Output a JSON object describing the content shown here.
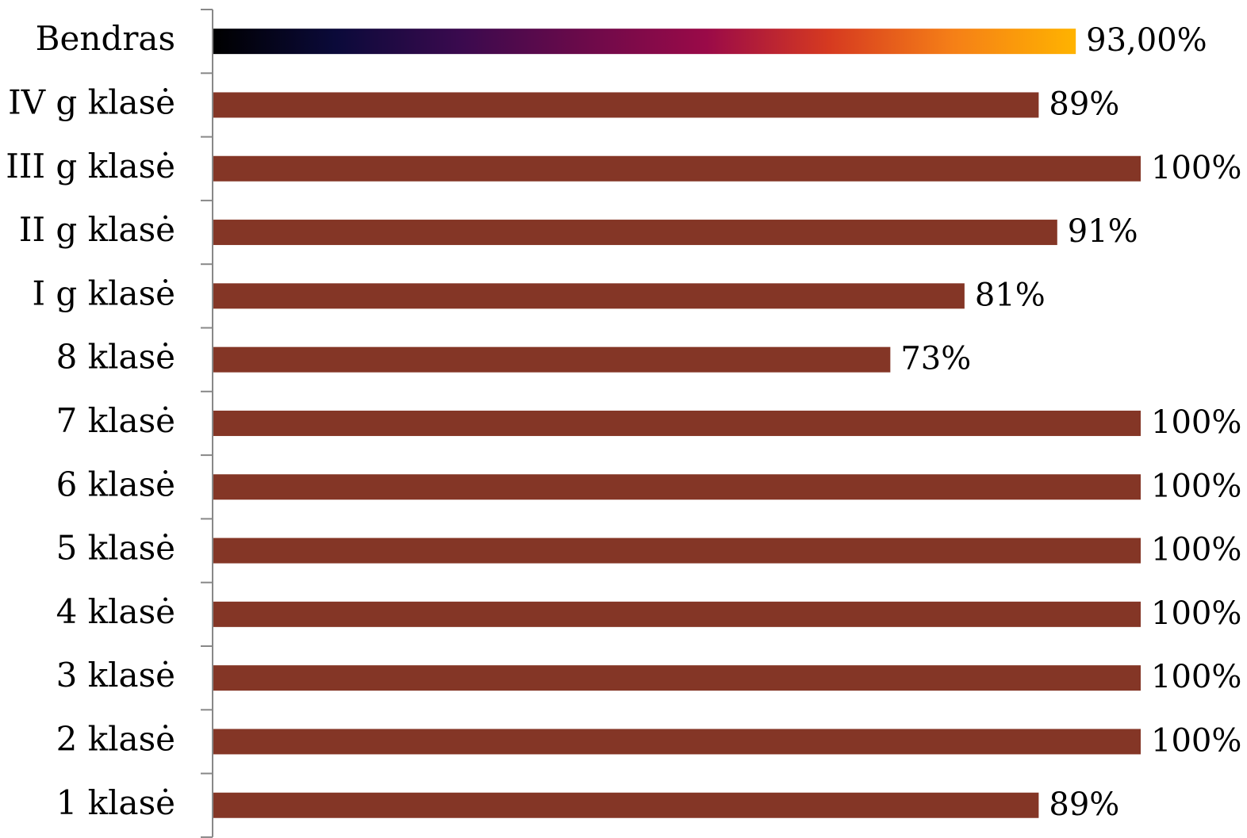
{
  "chart_data": {
    "type": "bar",
    "orientation": "horizontal",
    "categories": [
      "Bendras",
      "IV g klasė",
      "III g klasė",
      "II g klasė",
      "I g klasė",
      "8 klasė",
      "7 klasė",
      "6 klasė",
      "5 klasė",
      "4 klasė",
      "3 klasė",
      "2 klasė",
      "1 klasė"
    ],
    "values": [
      93,
      89,
      100,
      91,
      81,
      73,
      100,
      100,
      100,
      100,
      100,
      100,
      89
    ],
    "value_labels": [
      "93,00%",
      "89%",
      "100%",
      "91%",
      "81%",
      "73%",
      "100%",
      "100%",
      "100%",
      "100%",
      "100%",
      "100%",
      "89%"
    ],
    "xlim": [
      0,
      100
    ],
    "grid": false,
    "legend": "none",
    "colors": {
      "bar": "#843626",
      "highlight_gradient": [
        "#000000",
        "#0b0a3a",
        "#3a0a4e",
        "#6b0a4a",
        "#9a0a48",
        "#d63a20",
        "#f57f17",
        "#ffb300"
      ],
      "axis": "#888888",
      "text": "#000000"
    }
  }
}
